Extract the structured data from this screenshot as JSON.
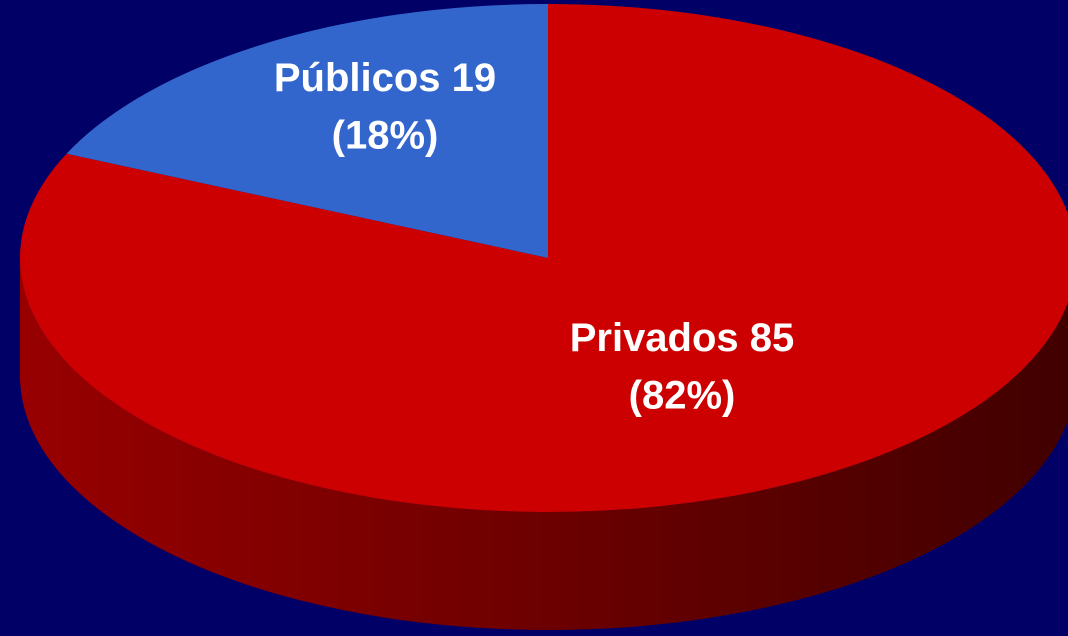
{
  "chart_data": {
    "type": "pie3d",
    "categories": [
      "Públicos",
      "Privados"
    ],
    "values": [
      19,
      85
    ],
    "percentages": [
      18,
      82
    ],
    "percentage_labels": [
      "(18%)",
      "(82%)"
    ],
    "colors": [
      "#3366cc",
      "#cc0000"
    ],
    "side_colors": [
      "#1f3f80",
      "#a00000"
    ]
  }
}
